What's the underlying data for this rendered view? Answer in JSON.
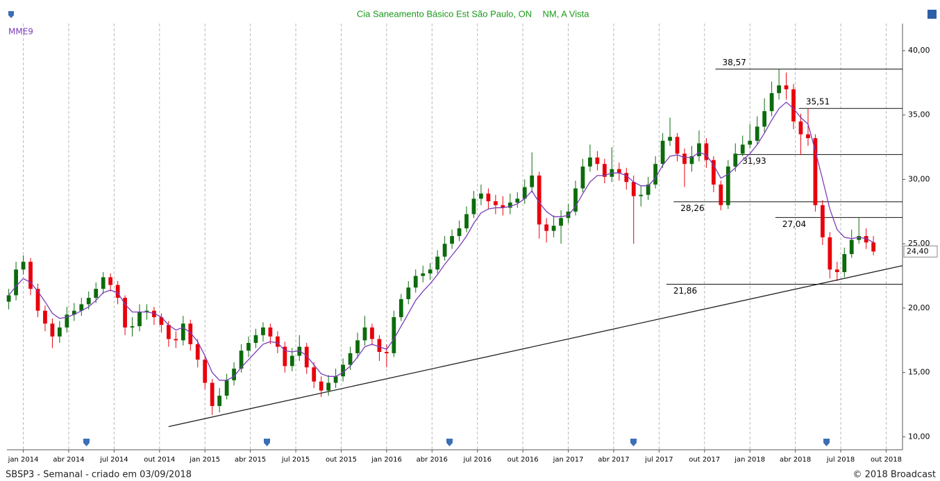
{
  "chart_data": {
    "type": "candlestick",
    "title": "Cia Saneamento Básico Est São Paulo, ON",
    "subtitle": "NM, A Vista",
    "x": [
      2013.92,
      2013.96,
      2014,
      2014.04,
      2014.08,
      2014.12,
      2014.16,
      2014.2,
      2014.24,
      2014.28,
      2014.32,
      2014.36,
      2014.4,
      2014.44,
      2014.48,
      2014.52,
      2014.56,
      2014.6,
      2014.64,
      2014.68,
      2014.72,
      2014.76,
      2014.8,
      2014.84,
      2014.88,
      2014.92,
      2014.96,
      2015,
      2015.04,
      2015.08,
      2015.12,
      2015.16,
      2015.2,
      2015.24,
      2015.28,
      2015.32,
      2015.36,
      2015.4,
      2015.44,
      2015.48,
      2015.52,
      2015.56,
      2015.6,
      2015.64,
      2015.68,
      2015.72,
      2015.76,
      2015.8,
      2015.84,
      2015.88,
      2015.92,
      2015.96,
      2016,
      2016.04,
      2016.08,
      2016.12,
      2016.16,
      2016.2,
      2016.24,
      2016.28,
      2016.32,
      2016.36,
      2016.4,
      2016.44,
      2016.48,
      2016.52,
      2016.56,
      2016.6,
      2016.64,
      2016.68,
      2016.72,
      2016.76,
      2016.8,
      2016.84,
      2016.88,
      2016.92,
      2016.96,
      2017,
      2017.04,
      2017.08,
      2017.12,
      2017.16,
      2017.2,
      2017.24,
      2017.28,
      2017.32,
      2017.36,
      2017.4,
      2017.44,
      2017.48,
      2017.52,
      2017.56,
      2017.6,
      2017.64,
      2017.68,
      2017.72,
      2017.76,
      2017.8,
      2017.84,
      2017.88,
      2017.92,
      2017.96,
      2018,
      2018.04,
      2018.08,
      2018.12,
      2018.16,
      2018.2,
      2018.24,
      2018.28,
      2018.32,
      2018.36,
      2018.4,
      2018.44,
      2018.48,
      2018.52,
      2018.56,
      2018.6,
      2018.64,
      2018.68
    ],
    "open": [
      20.5,
      21.0,
      23.0,
      23.6,
      21.5,
      19.8,
      18.8,
      17.8,
      18.5,
      19.5,
      19.8,
      20.3,
      20.8,
      21.5,
      22.4,
      21.8,
      20.8,
      18.5,
      18.6,
      19.7,
      19.8,
      19.3,
      18.7,
      17.6,
      17.5,
      18.8,
      17.2,
      16.0,
      14.2,
      12.4,
      13.2,
      14.4,
      15.3,
      16.7,
      17.3,
      17.9,
      18.5,
      17.8,
      17.0,
      15.5,
      16.3,
      17.0,
      15.4,
      14.3,
      13.6,
      14.2,
      14.7,
      15.6,
      16.5,
      17.5,
      18.5,
      17.6,
      16.6,
      16.5,
      19.3,
      20.7,
      21.6,
      22.5,
      22.7,
      23.0,
      24.0,
      25.0,
      25.6,
      26.2,
      27.3,
      28.5,
      28.9,
      28.3,
      28.0,
      27.8,
      28.2,
      28.5,
      29.4,
      30.3,
      26.5,
      26.0,
      26.4,
      27.0,
      27.5,
      29.3,
      31.0,
      31.7,
      31.2,
      30.2,
      30.8,
      30.5,
      29.8,
      28.7,
      28.8,
      29.6,
      31.2,
      33.0,
      33.3,
      32.0,
      31.2,
      31.8,
      32.8,
      31.5,
      29.6,
      28.0,
      31.0,
      32.0,
      32.7,
      33.0,
      34.1,
      35.3,
      36.7,
      37.3,
      37.0,
      34.5,
      33.5,
      33.2,
      28.0,
      25.5,
      23.0,
      22.8,
      24.2,
      25.3,
      25.6,
      25.1
    ],
    "high": [
      21.5,
      23.6,
      24.1,
      23.9,
      21.9,
      20.2,
      19.2,
      19.0,
      20.1,
      20.4,
      20.8,
      21.3,
      22.0,
      22.8,
      22.7,
      22.1,
      21.0,
      19.3,
      20.3,
      20.3,
      20.1,
      19.6,
      19.0,
      18.2,
      19.4,
      19.1,
      17.6,
      16.3,
      14.5,
      13.8,
      14.9,
      15.8,
      17.2,
      17.8,
      18.4,
      18.9,
      18.8,
      18.2,
      17.4,
      16.9,
      17.9,
      17.3,
      15.8,
      14.7,
      14.8,
      15.3,
      16.1,
      17.0,
      18.1,
      19.4,
      18.8,
      17.9,
      17.2,
      19.8,
      21.1,
      22.1,
      23.0,
      23.3,
      23.5,
      24.5,
      25.6,
      26.1,
      26.8,
      27.9,
      29.1,
      29.6,
      29.3,
      28.8,
      28.7,
      28.9,
      29.0,
      30.0,
      32.1,
      30.6,
      27.0,
      27.2,
      27.6,
      28.1,
      29.9,
      31.6,
      32.7,
      32.2,
      31.6,
      32.5,
      31.3,
      30.9,
      30.3,
      29.5,
      30.2,
      31.8,
      33.6,
      34.8,
      33.6,
      32.4,
      32.6,
      33.8,
      33.2,
      31.8,
      29.9,
      31.5,
      32.8,
      33.4,
      34.3,
      34.9,
      36.3,
      37.6,
      38.57,
      38.3,
      37.4,
      35.1,
      35.51,
      33.5,
      28.4,
      25.9,
      23.6,
      24.7,
      26.1,
      27.0,
      26.2,
      25.6
    ],
    "low": [
      19.9,
      20.6,
      22.6,
      21.0,
      19.3,
      18.2,
      16.9,
      17.3,
      18.1,
      19.0,
      19.4,
      19.9,
      20.4,
      21.1,
      21.3,
      20.3,
      17.9,
      17.8,
      18.2,
      19.1,
      18.7,
      18.1,
      17.0,
      16.9,
      17.1,
      16.7,
      15.4,
      13.7,
      11.7,
      11.9,
      12.9,
      14.0,
      15.0,
      16.2,
      16.9,
      17.4,
      17.2,
      16.5,
      15.0,
      15.1,
      15.9,
      14.9,
      13.8,
      13.1,
      13.2,
      13.8,
      14.3,
      15.2,
      16.1,
      17.1,
      17.1,
      15.9,
      15.4,
      16.2,
      19.0,
      20.3,
      21.2,
      22.0,
      22.2,
      22.7,
      23.7,
      24.6,
      25.2,
      25.9,
      27.0,
      28.0,
      27.7,
      27.3,
      27.2,
      27.3,
      27.8,
      28.1,
      29.0,
      25.4,
      25.1,
      25.5,
      25.0,
      26.6,
      27.2,
      29.0,
      30.6,
      30.7,
      29.7,
      29.8,
      29.9,
      29.2,
      25.0,
      27.9,
      28.4,
      29.3,
      30.9,
      32.6,
      31.4,
      29.4,
      30.6,
      31.4,
      30.9,
      29.0,
      27.6,
      27.7,
      30.6,
      31.8,
      32.4,
      32.7,
      33.6,
      34.9,
      36.2,
      36.2,
      33.9,
      31.9,
      32.6,
      27.5,
      24.9,
      22.3,
      22.1,
      22.4,
      23.9,
      25.0,
      24.6,
      24.1
    ],
    "close": [
      21.0,
      23.0,
      23.6,
      21.5,
      19.8,
      18.8,
      17.8,
      18.5,
      19.5,
      19.8,
      20.3,
      20.8,
      21.5,
      22.4,
      21.8,
      20.8,
      18.5,
      18.6,
      19.7,
      19.8,
      19.3,
      18.7,
      17.6,
      17.5,
      18.8,
      17.2,
      16.0,
      14.2,
      12.4,
      13.2,
      14.4,
      15.3,
      16.7,
      17.3,
      17.9,
      18.5,
      17.8,
      17.0,
      15.5,
      16.3,
      17.0,
      15.4,
      14.3,
      13.6,
      14.2,
      14.7,
      15.6,
      16.5,
      17.5,
      18.5,
      17.6,
      16.6,
      16.5,
      19.3,
      20.7,
      21.6,
      22.5,
      22.7,
      23.0,
      24.0,
      25.0,
      25.6,
      26.2,
      27.3,
      28.5,
      28.9,
      28.3,
      28.0,
      27.8,
      28.2,
      28.5,
      29.4,
      30.3,
      26.5,
      26.0,
      26.4,
      27.0,
      27.5,
      29.3,
      31.0,
      31.7,
      31.2,
      30.2,
      30.8,
      30.5,
      29.8,
      28.7,
      28.8,
      29.6,
      31.2,
      33.0,
      33.3,
      32.0,
      31.2,
      31.8,
      32.8,
      31.5,
      29.6,
      28.0,
      31.0,
      32.0,
      32.7,
      33.0,
      34.1,
      35.3,
      36.7,
      37.3,
      37.0,
      34.5,
      33.5,
      33.2,
      28.0,
      25.5,
      23.0,
      22.8,
      24.2,
      25.3,
      25.6,
      25.1,
      24.4
    ],
    "up_color": "#0c6b0c",
    "down_color": "#e8000b",
    "indicator": {
      "name": "MME9",
      "color": "#7a3db8",
      "values": [
        21.0,
        21.7,
        22.3,
        22.0,
        21.3,
        20.5,
        19.6,
        19.2,
        19.3,
        19.5,
        19.8,
        20.1,
        20.6,
        21.2,
        21.4,
        21.2,
        20.3,
        19.7,
        19.7,
        19.7,
        19.6,
        19.3,
        18.7,
        18.3,
        18.5,
        18.1,
        17.4,
        16.3,
        15.0,
        14.4,
        14.4,
        14.7,
        15.4,
        16.0,
        16.6,
        17.2,
        17.4,
        17.3,
        16.7,
        16.6,
        16.7,
        16.3,
        15.6,
        14.9,
        14.7,
        14.7,
        15.0,
        15.5,
        16.2,
        17.0,
        17.2,
        17.0,
        16.8,
        17.6,
        18.6,
        19.6,
        20.6,
        21.3,
        21.9,
        22.6,
        23.4,
        24.1,
        24.8,
        25.6,
        26.6,
        27.4,
        27.7,
        27.8,
        27.8,
        27.9,
        28.1,
        28.5,
        29.1,
        28.2,
        27.5,
        27.1,
        27.1,
        27.2,
        27.9,
        28.9,
        29.8,
        30.3,
        30.3,
        30.5,
        30.5,
        30.3,
        29.8,
        29.5,
        29.5,
        30.1,
        31.1,
        31.8,
        31.9,
        31.7,
        31.7,
        32.1,
        31.9,
        31.1,
        30.1,
        30.4,
        30.9,
        31.5,
        32.0,
        32.7,
        33.6,
        34.6,
        35.5,
        36.0,
        35.5,
        34.8,
        34.3,
        32.2,
        30.0,
        27.7,
        26.1,
        25.5,
        25.4,
        25.5,
        25.4,
        25.1
      ]
    },
    "levels": [
      {
        "value": 38.57,
        "label": "38,57",
        "x_start": 2017.81,
        "label_position": "above"
      },
      {
        "value": 35.51,
        "label": "35,51",
        "x_start": 2018.27,
        "label_position": "above"
      },
      {
        "value": 31.93,
        "label": "31,93",
        "x_start": 2017.92,
        "label_position": "below"
      },
      {
        "value": 28.26,
        "label": "28,26",
        "x_start": 2017.58,
        "label_position": "below"
      },
      {
        "value": 27.04,
        "label": "27,04",
        "x_start": 2018.14,
        "label_position": "below"
      },
      {
        "value": 21.86,
        "label": "21,86",
        "x_start": 2017.54,
        "label_position": "below"
      }
    ],
    "trendline": {
      "x": [
        2014.8,
        2018.84
      ],
      "y": [
        10.8,
        23.3
      ],
      "color": "#222222"
    },
    "last_price": {
      "value": 24.4,
      "label": "24,40"
    },
    "xlim": [
      2013.91,
      2018.84
    ],
    "xticks": [
      {
        "value": 2014,
        "label": "jan 2014"
      },
      {
        "value": 2014.25,
        "label": "abr 2014"
      },
      {
        "value": 2014.5,
        "label": "jul 2014"
      },
      {
        "value": 2014.75,
        "label": "out 2014"
      },
      {
        "value": 2015,
        "label": "jan 2015"
      },
      {
        "value": 2015.25,
        "label": "abr 2015"
      },
      {
        "value": 2015.5,
        "label": "jul 2015"
      },
      {
        "value": 2015.75,
        "label": "out 2015"
      },
      {
        "value": 2016,
        "label": "jan 2016"
      },
      {
        "value": 2016.25,
        "label": "abr 2016"
      },
      {
        "value": 2016.5,
        "label": "jul 2016"
      },
      {
        "value": 2016.75,
        "label": "out 2016"
      },
      {
        "value": 2017,
        "label": "jan 2017"
      },
      {
        "value": 2017.25,
        "label": "abr 2017"
      },
      {
        "value": 2017.5,
        "label": "jul 2017"
      },
      {
        "value": 2017.75,
        "label": "out 2017"
      },
      {
        "value": 2018,
        "label": "jan 2018"
      },
      {
        "value": 2018.25,
        "label": "abr 2018"
      },
      {
        "value": 2018.5,
        "label": "jul 2018"
      },
      {
        "value": 2018.75,
        "label": "out 2018"
      }
    ],
    "ylim": [
      9,
      42.1
    ],
    "yticks": [
      {
        "value": 10,
        "label": "10,00"
      },
      {
        "value": 15,
        "label": "15,00"
      },
      {
        "value": 20,
        "label": "20,00"
      },
      {
        "value": 25,
        "label": "25,00"
      },
      {
        "value": 30,
        "label": "30,00"
      },
      {
        "value": 35,
        "label": "35,00"
      },
      {
        "value": 40,
        "label": "40,00"
      }
    ],
    "y_axis_side": "right",
    "grid_x": true,
    "footer_left": "SBSP3 - Semanal - criado em 03/09/2018",
    "footer_right": "© 2018 Broadcast"
  }
}
